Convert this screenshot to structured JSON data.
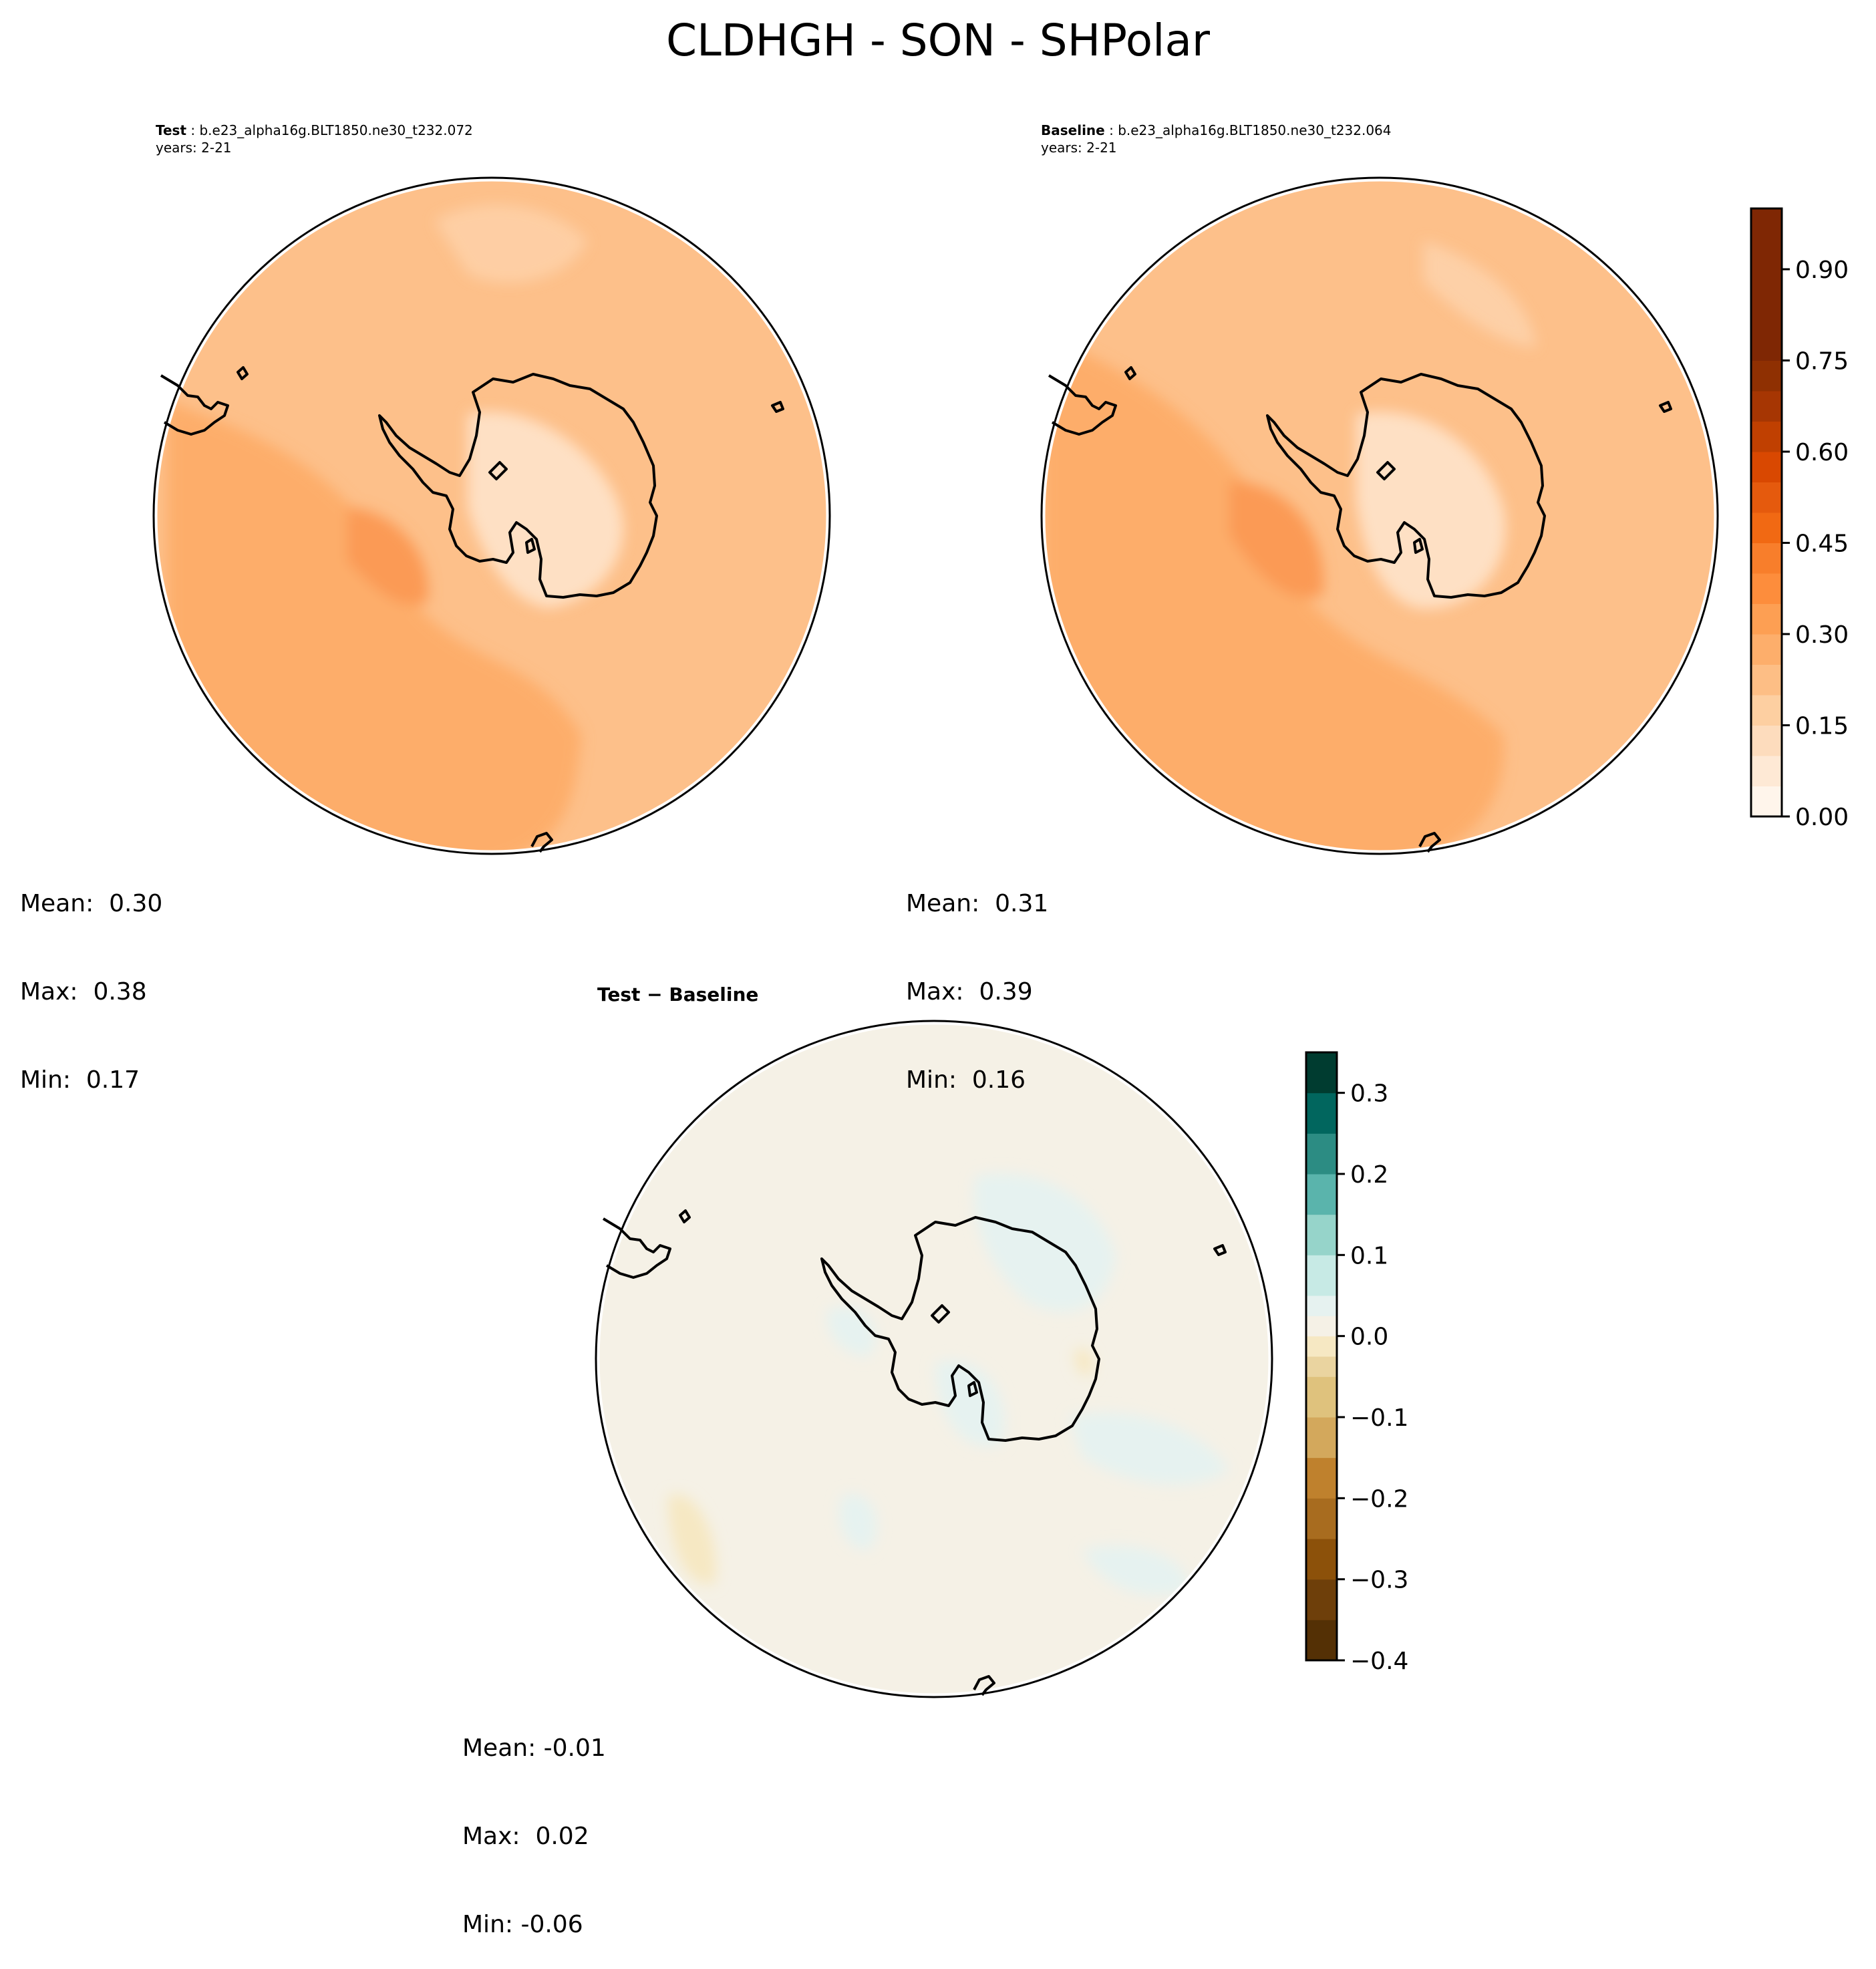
{
  "figure": {
    "title": "CLDHGH - SON - SHPolar"
  },
  "panels": {
    "test": {
      "label": "Test",
      "case": "b.e23_alpha16g.BLT1850.ne30_t232.072",
      "years": "years: 2-21",
      "stats": {
        "mean": "Mean:  0.30",
        "max": "Max:  0.38",
        "min": "Min:  0.17"
      },
      "region_values": {
        "ocean_pacific": 0.33,
        "ocean_atlantic_indian": 0.27,
        "antarctic_interior": 0.19,
        "weddell_sea": 0.37
      }
    },
    "baseline": {
      "label": "Baseline",
      "case": "b.e23_alpha16g.BLT1850.ne30_t232.064",
      "years": "years: 2-21",
      "stats": {
        "mean": "Mean:  0.31",
        "max": "Max:  0.39",
        "min": "Min:  0.16"
      },
      "region_values": {
        "ocean_pacific": 0.34,
        "ocean_atlantic_indian": 0.28,
        "antarctic_interior": 0.2,
        "weddell_sea": 0.38
      }
    },
    "difference": {
      "label": "Test − Baseline",
      "stats": {
        "mean": "Mean: -0.01",
        "max": "Max:  0.02",
        "min": "Min: -0.06"
      },
      "region_values": {
        "background": -0.01,
        "positive_patches": 0.01,
        "negative_patches": -0.04
      }
    }
  },
  "colorbars": {
    "main": {
      "min": 0.0,
      "max": 1.0,
      "step": 0.05,
      "ticks": [
        "0.00",
        "0.15",
        "0.30",
        "0.45",
        "0.60",
        "0.75",
        "0.90"
      ],
      "colors": [
        "#fff5eb",
        "#fee9d5",
        "#fddcbd",
        "#fdcfa1",
        "#fdbe85",
        "#fdae6b",
        "#fd9f53",
        "#fd8d3c",
        "#f87e2b",
        "#f16913",
        "#e55a0d",
        "#d94801",
        "#c04001",
        "#a63603",
        "#8f3002",
        "#7f2704"
      ]
    },
    "diff": {
      "min": -0.4,
      "max": 0.35,
      "step": 0.05,
      "ticks": [
        "0.3",
        "0.2",
        "0.1",
        "0.0",
        "−0.1",
        "−0.2",
        "−0.3",
        "−0.4"
      ],
      "tick_values": [
        0.3,
        0.2,
        0.1,
        0.0,
        -0.1,
        -0.2,
        -0.3,
        -0.4
      ],
      "colors": [
        "#543005",
        "#6e3f0a",
        "#8c510a",
        "#a86c1f",
        "#bf812d",
        "#d3a85c",
        "#dfc27d",
        "#ead4a0",
        "#f6e8c3",
        "#f5f1e6",
        "#e6f2f0",
        "#c7eae5",
        "#96d4ca",
        "#5ab4ac",
        "#2c8c83",
        "#01665e",
        "#003c30"
      ]
    }
  },
  "colors": {
    "ocean_pacific": "#fdad6a",
    "ocean_atlantic_indian": "#fdc08a",
    "antarctic_interior": "#fee0c4",
    "weddell_sea": "#fb9a54",
    "diff_background": "#f5f1e6",
    "diff_positive": "#e6f2f0",
    "diff_negative": "#f6e8c3"
  }
}
